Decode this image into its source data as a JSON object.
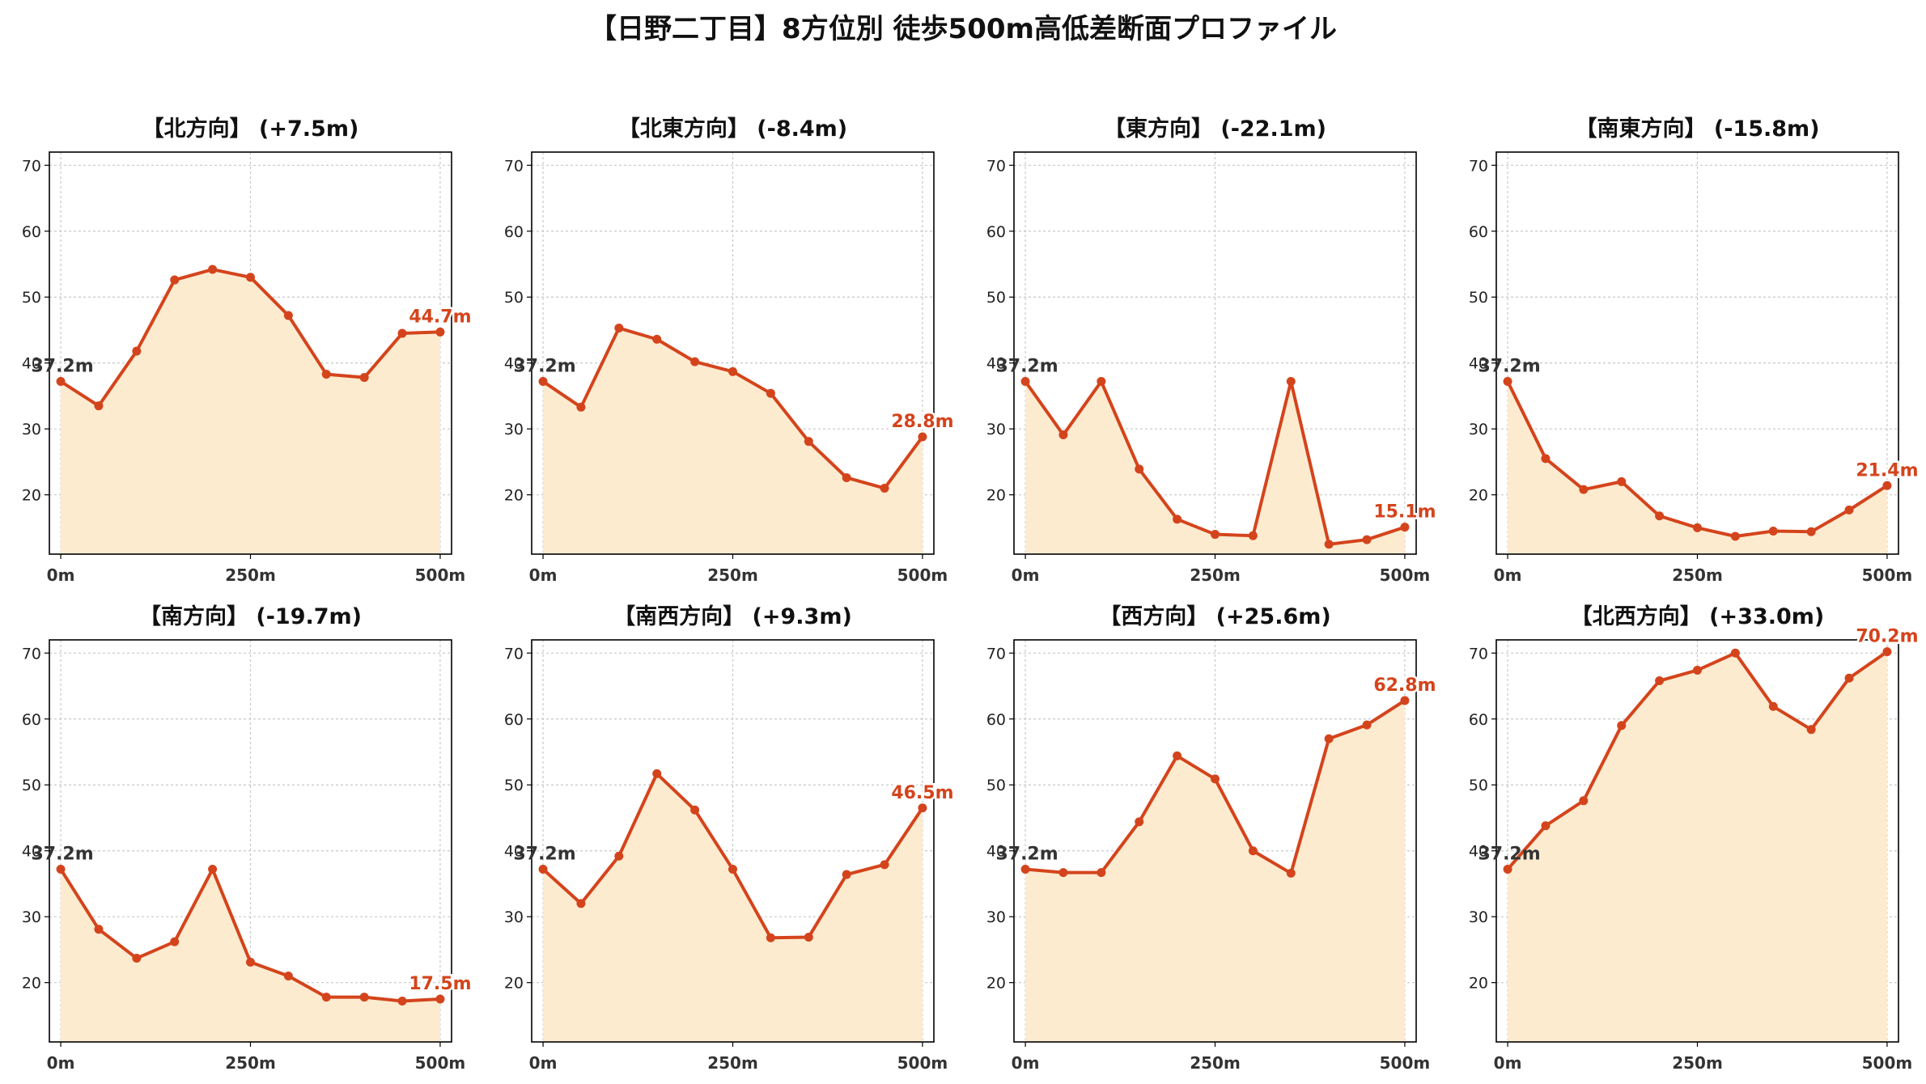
{
  "title": "【日野二丁目】8方位別 徒歩500m高低差断面プロファイル",
  "colors": {
    "line": "#d4441c",
    "fill": "#fdebd0",
    "end_label": "#d4441c",
    "start_label": "#333333"
  },
  "chart_data": [
    {
      "type": "area",
      "title": "【北方向】 (+7.5m)",
      "start_label": "37.2m",
      "end_label": "44.7m",
      "x": [
        0,
        50,
        100,
        150,
        200,
        250,
        300,
        350,
        400,
        450,
        500
      ],
      "values": [
        37.2,
        33.5,
        41.8,
        52.6,
        54.2,
        53.0,
        47.2,
        38.3,
        37.8,
        44.5,
        44.7
      ],
      "xticks": [
        {
          "value": 0,
          "label": "0m"
        },
        {
          "value": 250,
          "label": "250m"
        },
        {
          "value": 500,
          "label": "500m"
        }
      ],
      "yticks": [
        20,
        30,
        40,
        50,
        60,
        70
      ],
      "xlim": [
        -15,
        515
      ],
      "ylim": [
        11,
        72
      ],
      "grid": true
    },
    {
      "type": "area",
      "title": "【北東方向】 (-8.4m)",
      "start_label": "37.2m",
      "end_label": "28.8m",
      "x": [
        0,
        50,
        100,
        150,
        200,
        250,
        300,
        350,
        400,
        450,
        500
      ],
      "values": [
        37.2,
        33.3,
        45.3,
        43.6,
        40.2,
        38.7,
        35.4,
        28.1,
        22.6,
        21.0,
        28.8
      ],
      "xticks": [
        {
          "value": 0,
          "label": "0m"
        },
        {
          "value": 250,
          "label": "250m"
        },
        {
          "value": 500,
          "label": "500m"
        }
      ],
      "yticks": [
        20,
        30,
        40,
        50,
        60,
        70
      ],
      "xlim": [
        -15,
        515
      ],
      "ylim": [
        11,
        72
      ],
      "grid": true
    },
    {
      "type": "area",
      "title": "【東方向】 (-22.1m)",
      "start_label": "37.2m",
      "end_label": "15.1m",
      "x": [
        0,
        50,
        100,
        150,
        200,
        250,
        300,
        350,
        400,
        450,
        500
      ],
      "values": [
        37.2,
        29.1,
        37.2,
        23.9,
        16.3,
        14.0,
        13.8,
        37.2,
        12.5,
        13.2,
        15.1
      ],
      "xticks": [
        {
          "value": 0,
          "label": "0m"
        },
        {
          "value": 250,
          "label": "250m"
        },
        {
          "value": 500,
          "label": "500m"
        }
      ],
      "yticks": [
        20,
        30,
        40,
        50,
        60,
        70
      ],
      "xlim": [
        -15,
        515
      ],
      "ylim": [
        11,
        72
      ],
      "grid": true
    },
    {
      "type": "area",
      "title": "【南東方向】 (-15.8m)",
      "start_label": "37.2m",
      "end_label": "21.4m",
      "x": [
        0,
        50,
        100,
        150,
        200,
        250,
        300,
        350,
        400,
        450,
        500
      ],
      "values": [
        37.2,
        25.5,
        20.8,
        22.0,
        16.8,
        15.0,
        13.7,
        14.5,
        14.4,
        17.7,
        21.4
      ],
      "xticks": [
        {
          "value": 0,
          "label": "0m"
        },
        {
          "value": 250,
          "label": "250m"
        },
        {
          "value": 500,
          "label": "500m"
        }
      ],
      "yticks": [
        20,
        30,
        40,
        50,
        60,
        70
      ],
      "xlim": [
        -15,
        515
      ],
      "ylim": [
        11,
        72
      ],
      "grid": true
    },
    {
      "type": "area",
      "title": "【南方向】 (-19.7m)",
      "start_label": "37.2m",
      "end_label": "17.5m",
      "x": [
        0,
        50,
        100,
        150,
        200,
        250,
        300,
        350,
        400,
        450,
        500
      ],
      "values": [
        37.2,
        28.1,
        23.7,
        26.2,
        37.2,
        23.1,
        21.0,
        17.8,
        17.8,
        17.2,
        17.5
      ],
      "xticks": [
        {
          "value": 0,
          "label": "0m"
        },
        {
          "value": 250,
          "label": "250m"
        },
        {
          "value": 500,
          "label": "500m"
        }
      ],
      "yticks": [
        20,
        30,
        40,
        50,
        60,
        70
      ],
      "xlim": [
        -15,
        515
      ],
      "ylim": [
        11,
        72
      ],
      "grid": true
    },
    {
      "type": "area",
      "title": "【南西方向】 (+9.3m)",
      "start_label": "37.2m",
      "end_label": "46.5m",
      "x": [
        0,
        50,
        100,
        150,
        200,
        250,
        300,
        350,
        400,
        450,
        500
      ],
      "values": [
        37.2,
        32.0,
        39.2,
        51.7,
        46.2,
        37.2,
        26.8,
        26.9,
        36.4,
        37.9,
        46.5
      ],
      "xticks": [
        {
          "value": 0,
          "label": "0m"
        },
        {
          "value": 250,
          "label": "250m"
        },
        {
          "value": 500,
          "label": "500m"
        }
      ],
      "yticks": [
        20,
        30,
        40,
        50,
        60,
        70
      ],
      "xlim": [
        -15,
        515
      ],
      "ylim": [
        11,
        72
      ],
      "grid": true
    },
    {
      "type": "area",
      "title": "【西方向】 (+25.6m)",
      "start_label": "37.2m",
      "end_label": "62.8m",
      "x": [
        0,
        50,
        100,
        150,
        200,
        250,
        300,
        350,
        400,
        450,
        500
      ],
      "values": [
        37.2,
        36.7,
        36.7,
        44.4,
        54.4,
        50.9,
        40.0,
        36.6,
        57.0,
        59.1,
        62.8
      ],
      "xticks": [
        {
          "value": 0,
          "label": "0m"
        },
        {
          "value": 250,
          "label": "250m"
        },
        {
          "value": 500,
          "label": "500m"
        }
      ],
      "yticks": [
        20,
        30,
        40,
        50,
        60,
        70
      ],
      "xlim": [
        -15,
        515
      ],
      "ylim": [
        11,
        72
      ],
      "grid": true
    },
    {
      "type": "area",
      "title": "【北西方向】 (+33.0m)",
      "start_label": "37.2m",
      "end_label": "70.2m",
      "x": [
        0,
        50,
        100,
        150,
        200,
        250,
        300,
        350,
        400,
        450,
        500
      ],
      "values": [
        37.2,
        43.8,
        47.6,
        59.0,
        65.8,
        67.4,
        70.0,
        61.9,
        58.4,
        66.2,
        70.2
      ],
      "xticks": [
        {
          "value": 0,
          "label": "0m"
        },
        {
          "value": 250,
          "label": "250m"
        },
        {
          "value": 500,
          "label": "500m"
        }
      ],
      "yticks": [
        20,
        30,
        40,
        50,
        60,
        70
      ],
      "xlim": [
        -15,
        515
      ],
      "ylim": [
        11,
        72
      ],
      "grid": true
    }
  ]
}
